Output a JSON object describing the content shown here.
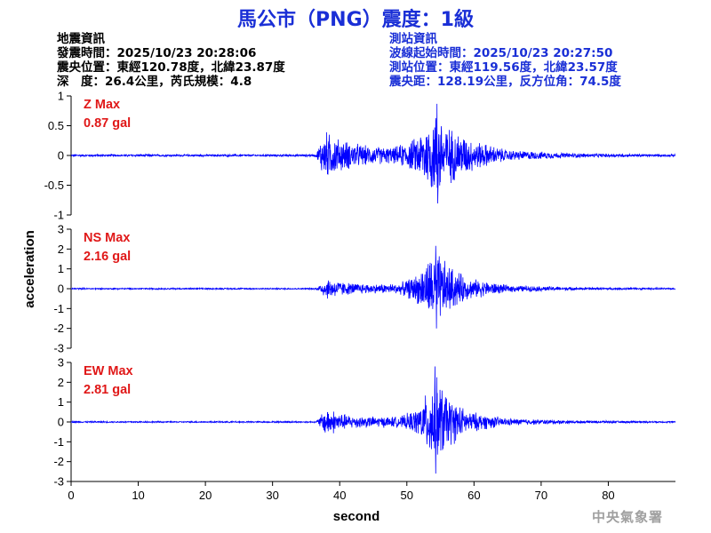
{
  "header": {
    "title": "馬公市（PNG）震度：1級",
    "quake_info_heading": "地震資訊",
    "origin_time": "發震時間：2025/10/23 20:28:06",
    "epicenter": "震央位置：東經120.78度，北緯23.87度",
    "depth_magnitude": "深　度：26.4公里，芮氏規模：4.8",
    "station_info_heading": "測站資訊",
    "wave_start_time": "波線起始時間：2025/10/23 20:27:50",
    "station_location": "測站位置：東經119.56度，北緯23.57度",
    "distance_azimuth": "震央距：128.19公里，反方位角：74.5度"
  },
  "footer": {
    "agency": "中央氣象署"
  },
  "colors": {
    "title": "#1a2fd6",
    "station_info": "#1a2fd6",
    "trace": "#0000ff",
    "max_label": "#e01818",
    "footer": "#a0a0a0"
  },
  "chart_data": {
    "type": "line",
    "xlabel": "second",
    "ylabel": "acceleration",
    "xlim": [
      0,
      90
    ],
    "x_ticks": [
      0,
      10,
      20,
      30,
      40,
      50,
      60,
      70,
      80
    ],
    "grid": false,
    "series": [
      {
        "name": "Z",
        "max_label": "Z Max",
        "max_value": "0.87 gal",
        "ylim": [
          -1,
          1
        ],
        "y_ticks": [
          -1,
          -0.5,
          0,
          0.5,
          1
        ],
        "y_tick_labels": [
          "-1",
          "-0.5",
          "0",
          "0.5",
          "1"
        ],
        "envelope": [
          {
            "t": 0,
            "a": 0.02
          },
          {
            "t": 36.5,
            "a": 0.02
          },
          {
            "t": 37.2,
            "a": 0.3
          },
          {
            "t": 38,
            "a": 0.45
          },
          {
            "t": 40,
            "a": 0.3
          },
          {
            "t": 44,
            "a": 0.18
          },
          {
            "t": 48,
            "a": 0.15
          },
          {
            "t": 51,
            "a": 0.3
          },
          {
            "t": 53,
            "a": 0.6
          },
          {
            "t": 54.5,
            "a": 0.87
          },
          {
            "t": 56,
            "a": 0.55
          },
          {
            "t": 60,
            "a": 0.28
          },
          {
            "t": 65,
            "a": 0.1
          },
          {
            "t": 75,
            "a": 0.04
          },
          {
            "t": 90,
            "a": 0.02
          }
        ]
      },
      {
        "name": "NS",
        "max_label": "NS Max",
        "max_value": "2.16 gal",
        "ylim": [
          -3,
          3
        ],
        "y_ticks": [
          -3,
          -2,
          -1,
          0,
          1,
          2,
          3
        ],
        "y_tick_labels": [
          "-3",
          "-2",
          "-1",
          "0",
          "1",
          "2",
          "3"
        ],
        "envelope": [
          {
            "t": 0,
            "a": 0.04
          },
          {
            "t": 36.5,
            "a": 0.04
          },
          {
            "t": 37.2,
            "a": 0.3
          },
          {
            "t": 38,
            "a": 0.6
          },
          {
            "t": 41,
            "a": 0.35
          },
          {
            "t": 45,
            "a": 0.25
          },
          {
            "t": 49,
            "a": 0.3
          },
          {
            "t": 51.5,
            "a": 0.8
          },
          {
            "t": 53,
            "a": 1.5
          },
          {
            "t": 54.3,
            "a": 2.16
          },
          {
            "t": 56,
            "a": 1.4
          },
          {
            "t": 59,
            "a": 0.6
          },
          {
            "t": 65,
            "a": 0.2
          },
          {
            "t": 75,
            "a": 0.08
          },
          {
            "t": 90,
            "a": 0.04
          }
        ]
      },
      {
        "name": "EW",
        "max_label": "EW Max",
        "max_value": "2.81 gal",
        "ylim": [
          -3,
          3
        ],
        "y_ticks": [
          -3,
          -2,
          -1,
          0,
          1,
          2,
          3
        ],
        "y_tick_labels": [
          "-3",
          "-2",
          "-1",
          "0",
          "1",
          "2",
          "3"
        ],
        "envelope": [
          {
            "t": 0,
            "a": 0.04
          },
          {
            "t": 36.5,
            "a": 0.04
          },
          {
            "t": 37.2,
            "a": 0.4
          },
          {
            "t": 38,
            "a": 0.8
          },
          {
            "t": 41,
            "a": 0.4
          },
          {
            "t": 45,
            "a": 0.3
          },
          {
            "t": 49,
            "a": 0.3
          },
          {
            "t": 51.5,
            "a": 0.7
          },
          {
            "t": 53,
            "a": 1.6
          },
          {
            "t": 54.2,
            "a": 2.81
          },
          {
            "t": 56,
            "a": 1.5
          },
          {
            "t": 59,
            "a": 0.6
          },
          {
            "t": 65,
            "a": 0.2
          },
          {
            "t": 75,
            "a": 0.08
          },
          {
            "t": 90,
            "a": 0.04
          }
        ]
      }
    ]
  }
}
